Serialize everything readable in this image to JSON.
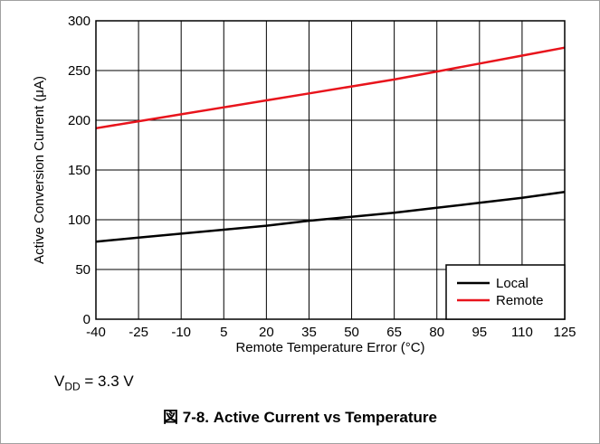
{
  "chart_data": {
    "type": "line",
    "xlabel": "Remote Temperature Error (°C)",
    "ylabel": "Active Conversion Current (μA)",
    "x_ticks": [
      "-40",
      "-25",
      "-10",
      "5",
      "20",
      "35",
      "50",
      "65",
      "80",
      "95",
      "110",
      "125"
    ],
    "y_ticks": [
      "0",
      "50",
      "100",
      "150",
      "200",
      "250",
      "300"
    ],
    "xlim": [
      -40,
      125
    ],
    "ylim": [
      0,
      300
    ],
    "grid": true,
    "legend_position": "bottom-right",
    "series": [
      {
        "name": "Local",
        "color": "#000000",
        "x": [
          -40,
          -25,
          -10,
          5,
          20,
          35,
          50,
          65,
          80,
          95,
          110,
          125
        ],
        "y": [
          78,
          82,
          86,
          90,
          94,
          99,
          103,
          107,
          112,
          117,
          122,
          128
        ]
      },
      {
        "name": "Remote",
        "color": "#e8141c",
        "x": [
          -40,
          -25,
          -10,
          5,
          20,
          35,
          50,
          65,
          80,
          95,
          110,
          125
        ],
        "y": [
          192,
          199,
          206,
          213,
          220,
          227,
          234,
          241,
          249,
          257,
          265,
          273
        ]
      }
    ]
  },
  "note": {
    "prefix": "V",
    "subscript": "DD",
    "suffix": " = 3.3 V"
  },
  "caption": "図 7-8. Active Current vs Temperature"
}
